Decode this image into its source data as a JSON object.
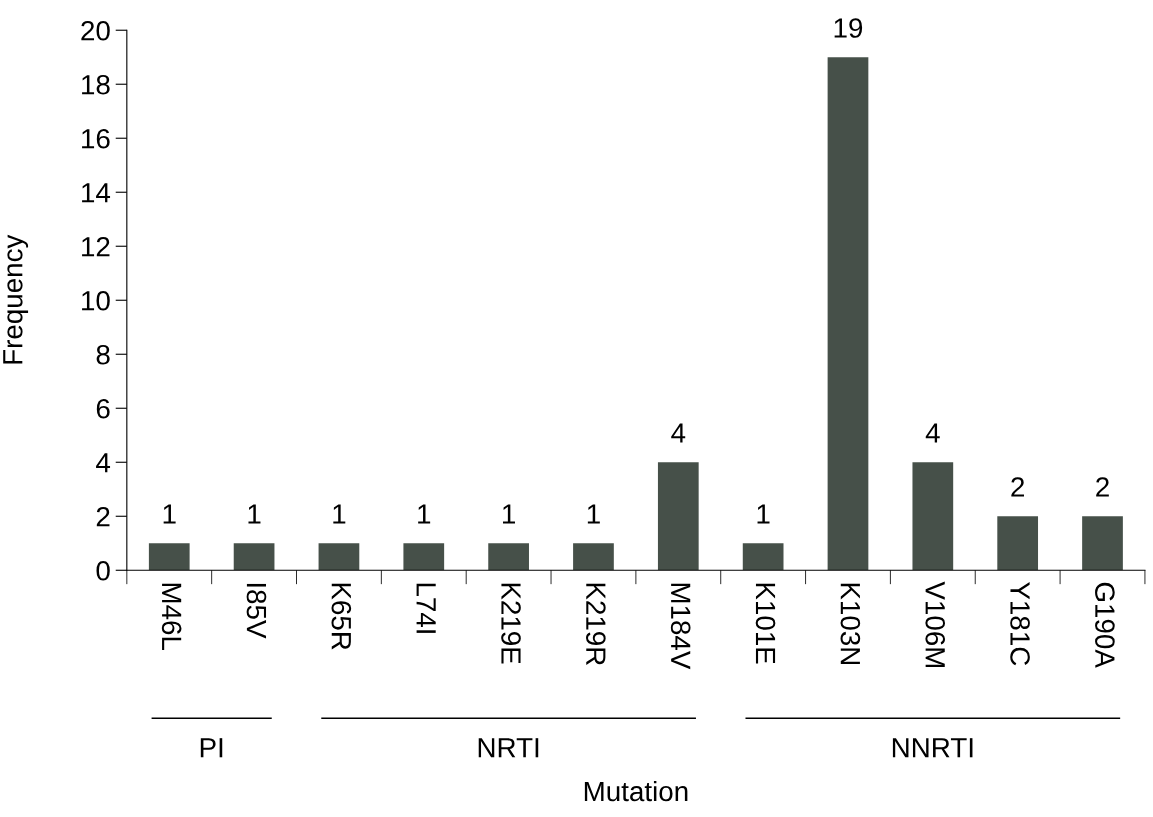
{
  "chart_data": {
    "type": "bar",
    "xlabel": "Mutation",
    "ylabel": "Frequency",
    "categories": [
      "M46L",
      "I85V",
      "K65R",
      "L74I",
      "K219E",
      "K219R",
      "M184V",
      "K101E",
      "K103N",
      "V106M",
      "Y181C",
      "G190A"
    ],
    "values": [
      1,
      1,
      1,
      1,
      1,
      1,
      4,
      1,
      19,
      4,
      2,
      2
    ],
    "color": "#465049",
    "ylim": [
      0,
      20
    ],
    "yticks": [
      0,
      2,
      4,
      6,
      8,
      10,
      12,
      14,
      16,
      18,
      20
    ],
    "data_labels": true,
    "grid": false,
    "annotations": [
      "PI",
      "NRTI",
      "NNRTI"
    ]
  }
}
